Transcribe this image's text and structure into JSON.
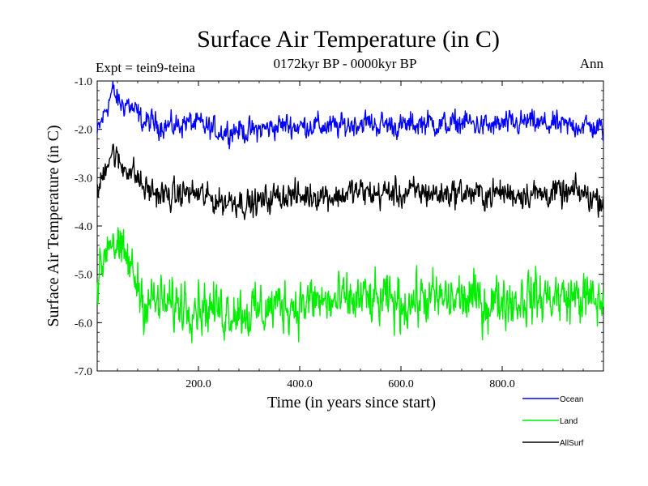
{
  "chart_data": {
    "type": "line",
    "title": "Surface Air Temperature (in C)",
    "subtitle": "0172kyr BP - 0000kyr BP",
    "expt_label": "Expt = tein9-teina",
    "period_label": "Ann",
    "xlabel": "Time (in years since start)",
    "ylabel": "Surface Air Temperature (in C)",
    "xlim": [
      0,
      1000
    ],
    "ylim": [
      -7.0,
      -1.0
    ],
    "x_ticks": [
      200,
      400,
      600,
      800
    ],
    "x_tick_labels": [
      "200.0",
      "400.0",
      "600.0",
      "800.0"
    ],
    "y_ticks": [
      -1,
      -2,
      -3,
      -4,
      -5,
      -6,
      -7
    ],
    "y_tick_labels": [
      "-1.0",
      "-2.0",
      "-3.0",
      "-4.0",
      "-5.0",
      "-6.0",
      "-7.0"
    ],
    "series": [
      {
        "name": "Ocean",
        "color": "#0000ff",
        "x": [
          0,
          10,
          20,
          30,
          40,
          50,
          60,
          70,
          80,
          90,
          100,
          125,
          150,
          175,
          200,
          225,
          250,
          275,
          300,
          325,
          350,
          375,
          400,
          425,
          450,
          475,
          500,
          525,
          550,
          575,
          600,
          625,
          650,
          675,
          700,
          725,
          750,
          775,
          800,
          825,
          850,
          875,
          900,
          925,
          950,
          975,
          1000
        ],
        "values": [
          -2.1,
          -1.8,
          -1.5,
          -1.2,
          -1.4,
          -1.5,
          -1.45,
          -1.6,
          -1.7,
          -1.85,
          -1.85,
          -1.9,
          -1.95,
          -1.85,
          -1.9,
          -2.0,
          -2.05,
          -2.0,
          -2.05,
          -2.0,
          -1.95,
          -1.9,
          -1.95,
          -1.9,
          -1.95,
          -1.95,
          -1.9,
          -1.85,
          -1.9,
          -1.9,
          -1.95,
          -1.9,
          -1.85,
          -1.9,
          -1.9,
          -1.85,
          -1.9,
          -1.95,
          -1.9,
          -1.9,
          -1.85,
          -1.9,
          -1.9,
          -1.95,
          -1.9,
          -1.95,
          -2.0
        ],
        "noise": 0.11
      },
      {
        "name": "AllSurf",
        "color": "#000000",
        "x": [
          0,
          10,
          20,
          30,
          40,
          50,
          60,
          70,
          80,
          90,
          100,
          125,
          150,
          175,
          200,
          225,
          250,
          275,
          300,
          325,
          350,
          375,
          400,
          425,
          450,
          475,
          500,
          525,
          550,
          575,
          600,
          625,
          650,
          675,
          700,
          725,
          750,
          775,
          800,
          825,
          850,
          875,
          900,
          925,
          950,
          975,
          1000
        ],
        "values": [
          -3.4,
          -3.0,
          -2.6,
          -2.45,
          -2.65,
          -2.8,
          -2.75,
          -2.9,
          -3.0,
          -3.2,
          -3.25,
          -3.35,
          -3.4,
          -3.3,
          -3.35,
          -3.45,
          -3.5,
          -3.45,
          -3.55,
          -3.5,
          -3.4,
          -3.35,
          -3.4,
          -3.35,
          -3.35,
          -3.4,
          -3.3,
          -3.3,
          -3.35,
          -3.3,
          -3.35,
          -3.3,
          -3.3,
          -3.35,
          -3.3,
          -3.3,
          -3.35,
          -3.35,
          -3.3,
          -3.35,
          -3.3,
          -3.35,
          -3.3,
          -3.35,
          -3.3,
          -3.4,
          -3.45
        ],
        "noise": 0.13
      },
      {
        "name": "Land",
        "color": "#00ee00",
        "x": [
          0,
          10,
          20,
          30,
          40,
          50,
          60,
          70,
          80,
          90,
          100,
          125,
          150,
          175,
          200,
          225,
          250,
          275,
          300,
          325,
          350,
          375,
          400,
          425,
          450,
          475,
          500,
          525,
          550,
          575,
          600,
          625,
          650,
          675,
          700,
          725,
          750,
          775,
          800,
          825,
          850,
          875,
          900,
          925,
          950,
          975,
          1000
        ],
        "values": [
          -5.3,
          -4.8,
          -4.3,
          -4.2,
          -4.5,
          -4.7,
          -4.7,
          -5.0,
          -5.2,
          -5.5,
          -5.55,
          -5.6,
          -5.65,
          -5.55,
          -5.6,
          -5.7,
          -5.75,
          -5.7,
          -5.8,
          -5.75,
          -5.65,
          -5.6,
          -5.65,
          -5.55,
          -5.6,
          -5.6,
          -5.55,
          -5.5,
          -5.6,
          -5.55,
          -5.6,
          -5.55,
          -5.5,
          -5.55,
          -5.5,
          -5.5,
          -5.55,
          -5.6,
          -5.5,
          -5.55,
          -5.45,
          -5.5,
          -5.45,
          -5.5,
          -5.45,
          -5.55,
          -5.6
        ],
        "noise": 0.24
      }
    ],
    "legend": {
      "placement": "bottom-right",
      "entries": [
        {
          "name": "Ocean",
          "color": "#0000ff"
        },
        {
          "name": "Land",
          "color": "#00ee00"
        },
        {
          "name": "AllSurf",
          "color": "#000000"
        }
      ]
    }
  }
}
